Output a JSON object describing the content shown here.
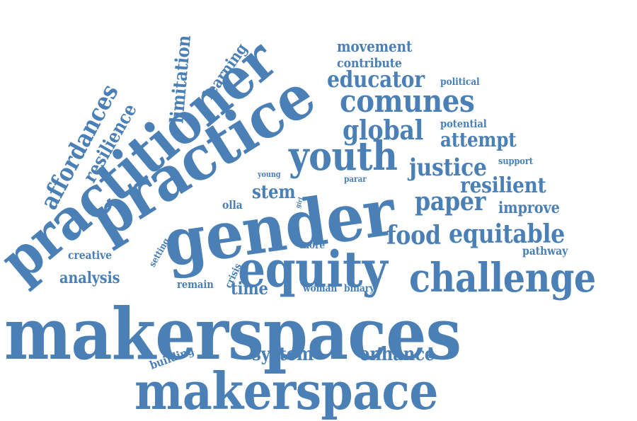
{
  "cloud": {
    "color": "#4a80b6",
    "words": [
      {
        "id": "makerspaces",
        "text": "makerspaces",
        "size": 100
      },
      {
        "id": "makerspace",
        "text": "makerspace",
        "size": 72
      },
      {
        "id": "gender",
        "text": "gender",
        "size": 92
      },
      {
        "id": "practice",
        "text": "practice",
        "size": 86
      },
      {
        "id": "practitioner",
        "text": "practitioner",
        "size": 80
      },
      {
        "id": "equity",
        "text": "equity",
        "size": 70
      },
      {
        "id": "challenge",
        "text": "challenge",
        "size": 56
      },
      {
        "id": "youth",
        "text": "youth",
        "size": 56
      },
      {
        "id": "comunes",
        "text": "comunes",
        "size": 44
      },
      {
        "id": "equitable",
        "text": "equitable",
        "size": 36
      },
      {
        "id": "food",
        "text": "food",
        "size": 36
      },
      {
        "id": "paper",
        "text": "paper",
        "size": 36
      },
      {
        "id": "global",
        "text": "global",
        "size": 38
      },
      {
        "id": "justice",
        "text": "justice",
        "size": 34
      },
      {
        "id": "educator",
        "text": "educator",
        "size": 32
      },
      {
        "id": "affordances",
        "text": "affordances",
        "size": 34
      },
      {
        "id": "resilient",
        "text": "resilient",
        "size": 30
      },
      {
        "id": "attempt",
        "text": "attempt",
        "size": 28
      },
      {
        "id": "system",
        "text": "system",
        "size": 26
      },
      {
        "id": "enhance",
        "text": "enhance",
        "size": 26
      },
      {
        "id": "stem",
        "text": "stem",
        "size": 26
      },
      {
        "id": "time",
        "text": "time",
        "size": 24
      },
      {
        "id": "analysis",
        "text": "analysis",
        "size": 22
      },
      {
        "id": "limitation",
        "text": "limitation",
        "size": 26
      },
      {
        "id": "resilience",
        "text": "resilience",
        "size": 26
      },
      {
        "id": "learning",
        "text": "learning",
        "size": 22
      },
      {
        "id": "movement",
        "text": "movement",
        "size": 21
      },
      {
        "id": "contribute",
        "text": "contribute",
        "size": 18
      },
      {
        "id": "political",
        "text": "political",
        "size": 14
      },
      {
        "id": "potential",
        "text": "potential",
        "size": 15
      },
      {
        "id": "support",
        "text": "support",
        "size": 13
      },
      {
        "id": "improve",
        "text": "improve",
        "size": 22
      },
      {
        "id": "pathway",
        "text": "pathway",
        "size": 16
      },
      {
        "id": "creative",
        "text": "creative",
        "size": 16
      },
      {
        "id": "setting",
        "text": "setting",
        "size": 13
      },
      {
        "id": "crisis",
        "text": "crisis",
        "size": 14
      },
      {
        "id": "remain",
        "text": "remain",
        "size": 15
      },
      {
        "id": "more",
        "text": "more",
        "size": 14
      },
      {
        "id": "woman",
        "text": "woman",
        "size": 14
      },
      {
        "id": "binary",
        "text": "binary",
        "size": 14
      },
      {
        "id": "olla",
        "text": "olla",
        "size": 16
      },
      {
        "id": "young",
        "text": "young",
        "size": 11
      },
      {
        "id": "parar",
        "text": "parar",
        "size": 12
      },
      {
        "id": "girl",
        "text": "girl",
        "size": 9
      },
      {
        "id": "building",
        "text": "building",
        "size": 16
      }
    ]
  }
}
